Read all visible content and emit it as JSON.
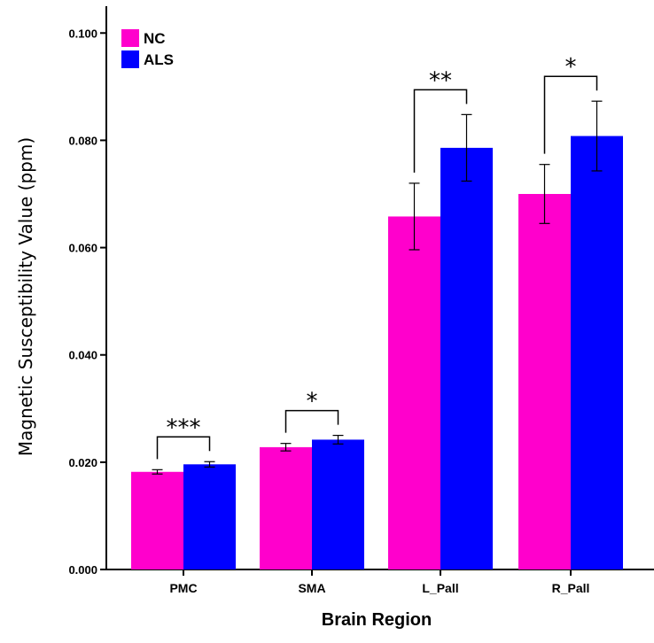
{
  "chart_data": {
    "type": "bar",
    "title": "",
    "xlabel": "Brain Region",
    "ylabel": "Magnetic Susceptibility Value (ppm)",
    "ylim": [
      0,
      0.105
    ],
    "yticks": [
      "0.000",
      "0.020",
      "0.040",
      "0.060",
      "0.080",
      "0.100"
    ],
    "ytick_values": [
      0,
      0.02,
      0.04,
      0.06,
      0.08,
      0.1
    ],
    "categories": [
      "PMC",
      "SMA",
      "L_Pall",
      "R_Pall"
    ],
    "series": [
      {
        "name": "NC",
        "color": "#ff00cc",
        "values": [
          0.0182,
          0.0228,
          0.0658,
          0.07
        ],
        "errors": [
          0.0004,
          0.0007,
          0.0062,
          0.0055
        ]
      },
      {
        "name": "ALS",
        "color": "#0000ff",
        "values": [
          0.0196,
          0.0242,
          0.0786,
          0.0808
        ],
        "errors": [
          0.0005,
          0.0008,
          0.0062,
          0.0065
        ]
      }
    ],
    "significance": [
      "***",
      "*",
      "**",
      "*"
    ],
    "legend_position": "top-left",
    "grid": false
  }
}
